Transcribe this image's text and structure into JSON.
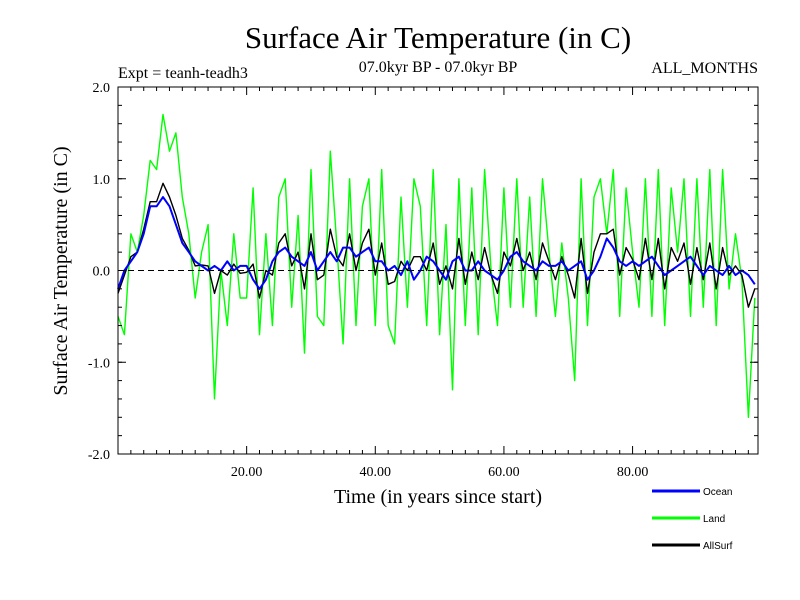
{
  "chart_data": {
    "type": "line",
    "title": "Surface Air Temperature (in C)",
    "subtitle_left": "Expt = teanh-teadh3",
    "subtitle_center": "07.0kyr BP - 07.0kyr BP",
    "subtitle_right": "ALL_MONTHS",
    "xlabel": "Time (in years since start)",
    "ylabel": "Surface Air Temperature (in C)",
    "xlim": [
      0,
      99.5
    ],
    "ylim": [
      -2.0,
      2.0
    ],
    "xticks": [
      20,
      40,
      60,
      80
    ],
    "xtick_labels": [
      "20.00",
      "40.00",
      "60.00",
      "80.00"
    ],
    "yticks": [
      -2.0,
      -1.0,
      0.0,
      1.0,
      2.0
    ],
    "ytick_labels": [
      "-2.0",
      "-1.0",
      "0.0",
      "1.0",
      "2.0"
    ],
    "reference_line_y": 0.0,
    "series": [
      {
        "name": "Ocean",
        "color": "#0000ff",
        "x": [
          0,
          1,
          2,
          3,
          4,
          5,
          6,
          7,
          8,
          9,
          10,
          11,
          12,
          13,
          14,
          15,
          16,
          17,
          18,
          19,
          20,
          21,
          22,
          23,
          24,
          25,
          26,
          27,
          28,
          29,
          30,
          31,
          32,
          33,
          34,
          35,
          36,
          37,
          38,
          39,
          40,
          41,
          42,
          43,
          44,
          45,
          46,
          47,
          48,
          49,
          50,
          51,
          52,
          53,
          54,
          55,
          56,
          57,
          58,
          59,
          60,
          61,
          62,
          63,
          64,
          65,
          66,
          67,
          68,
          69,
          70,
          71,
          72,
          73,
          74,
          75,
          76,
          77,
          78,
          79,
          80,
          81,
          82,
          83,
          84,
          85,
          86,
          87,
          88,
          89,
          90,
          91,
          92,
          93,
          94,
          95,
          96,
          97,
          98,
          99
        ],
        "values": [
          -0.2,
          0.0,
          0.1,
          0.2,
          0.4,
          0.7,
          0.7,
          0.8,
          0.7,
          0.5,
          0.3,
          0.2,
          0.1,
          0.05,
          0.0,
          0.05,
          0.0,
          0.1,
          0.0,
          0.05,
          0.05,
          -0.1,
          -0.2,
          -0.1,
          0.1,
          0.2,
          0.25,
          0.15,
          0.1,
          0.05,
          0.2,
          0.0,
          0.1,
          0.2,
          0.1,
          0.25,
          0.25,
          0.15,
          0.2,
          0.25,
          0.1,
          0.1,
          0.0,
          0.05,
          -0.05,
          0.1,
          -0.1,
          0.0,
          0.15,
          0.1,
          0.0,
          -0.1,
          0.1,
          0.15,
          0.0,
          0.0,
          0.1,
          0.0,
          -0.05,
          -0.1,
          0.0,
          0.15,
          0.2,
          0.1,
          0.05,
          0.0,
          0.1,
          0.05,
          0.05,
          0.1,
          0.0,
          0.05,
          0.1,
          -0.1,
          0.0,
          0.15,
          0.35,
          0.25,
          0.1,
          0.05,
          0.1,
          0.05,
          0.1,
          0.15,
          0.05,
          -0.05,
          0.0,
          0.05,
          0.1,
          0.15,
          0.05,
          -0.05,
          0.05,
          0.0,
          -0.05,
          0.05,
          -0.05,
          0.0,
          -0.05,
          -0.15
        ]
      },
      {
        "name": "Land",
        "color": "#00ff00",
        "x": [
          0,
          1,
          2,
          3,
          4,
          5,
          6,
          7,
          8,
          9,
          10,
          11,
          12,
          13,
          14,
          15,
          16,
          17,
          18,
          19,
          20,
          21,
          22,
          23,
          24,
          25,
          26,
          27,
          28,
          29,
          30,
          31,
          32,
          33,
          34,
          35,
          36,
          37,
          38,
          39,
          40,
          41,
          42,
          43,
          44,
          45,
          46,
          47,
          48,
          49,
          50,
          51,
          52,
          53,
          54,
          55,
          56,
          57,
          58,
          59,
          60,
          61,
          62,
          63,
          64,
          65,
          66,
          67,
          68,
          69,
          70,
          71,
          72,
          73,
          74,
          75,
          76,
          77,
          78,
          79,
          80,
          81,
          82,
          83,
          84,
          85,
          86,
          87,
          88,
          89,
          90,
          91,
          92,
          93,
          94,
          95,
          96,
          97,
          98,
          99
        ],
        "values": [
          -0.5,
          -0.7,
          0.4,
          0.2,
          0.6,
          1.2,
          1.1,
          1.7,
          1.3,
          1.5,
          0.8,
          0.4,
          -0.3,
          0.2,
          0.5,
          -1.4,
          0.0,
          -0.6,
          0.4,
          -0.3,
          -0.3,
          0.9,
          -0.7,
          0.4,
          -0.6,
          0.8,
          1.0,
          -0.4,
          0.6,
          -0.9,
          1.1,
          -0.5,
          -0.6,
          1.3,
          0.3,
          -0.8,
          1.0,
          -0.6,
          0.7,
          1.0,
          -0.6,
          1.1,
          -0.6,
          -0.8,
          0.8,
          -0.4,
          1.0,
          0.7,
          -0.6,
          1.1,
          -0.7,
          0.5,
          -1.3,
          1.0,
          -0.6,
          0.9,
          -0.7,
          1.1,
          0.0,
          -0.6,
          0.9,
          -0.4,
          1.0,
          -0.4,
          0.8,
          -0.5,
          1.0,
          0.2,
          -0.5,
          0.3,
          -0.3,
          -1.2,
          1.0,
          -0.6,
          0.8,
          1.0,
          0.4,
          1.1,
          -0.5,
          0.9,
          0.2,
          -0.4,
          1.0,
          -0.5,
          1.1,
          -0.6,
          0.9,
          0.2,
          1.0,
          -0.5,
          1.0,
          -0.4,
          1.1,
          -0.6,
          1.1,
          -0.2,
          0.4,
          -0.1,
          -1.6,
          -0.3
        ]
      },
      {
        "name": "AllSurf",
        "color": "#000000",
        "x": [
          0,
          1,
          2,
          3,
          4,
          5,
          6,
          7,
          8,
          9,
          10,
          11,
          12,
          13,
          14,
          15,
          16,
          17,
          18,
          19,
          20,
          21,
          22,
          23,
          24,
          25,
          26,
          27,
          28,
          29,
          30,
          31,
          32,
          33,
          34,
          35,
          36,
          37,
          38,
          39,
          40,
          41,
          42,
          43,
          44,
          45,
          46,
          47,
          48,
          49,
          50,
          51,
          52,
          53,
          54,
          55,
          56,
          57,
          58,
          59,
          60,
          61,
          62,
          63,
          64,
          65,
          66,
          67,
          68,
          69,
          70,
          71,
          72,
          73,
          74,
          75,
          76,
          77,
          78,
          79,
          80,
          81,
          82,
          83,
          84,
          85,
          86,
          87,
          88,
          89,
          90,
          91,
          92,
          93,
          94,
          95,
          96,
          97,
          98,
          99
        ],
        "values": [
          -0.25,
          -0.05,
          0.15,
          0.2,
          0.45,
          0.75,
          0.75,
          0.95,
          0.8,
          0.6,
          0.35,
          0.22,
          0.05,
          0.06,
          0.05,
          -0.25,
          0.0,
          -0.05,
          0.07,
          -0.03,
          -0.02,
          0.07,
          -0.3,
          0.0,
          -0.05,
          0.3,
          0.4,
          0.05,
          0.2,
          -0.2,
          0.4,
          -0.1,
          -0.05,
          0.45,
          0.15,
          0.05,
          0.4,
          0.0,
          0.3,
          0.45,
          -0.05,
          0.3,
          -0.15,
          -0.12,
          0.1,
          0.0,
          0.15,
          0.15,
          0.0,
          0.3,
          -0.15,
          0.05,
          -0.2,
          0.35,
          -0.15,
          0.2,
          -0.1,
          0.25,
          -0.05,
          -0.25,
          0.2,
          0.05,
          0.35,
          0.0,
          0.2,
          -0.1,
          0.3,
          0.1,
          -0.1,
          0.15,
          -0.05,
          -0.3,
          0.35,
          -0.25,
          0.2,
          0.4,
          0.4,
          0.45,
          -0.05,
          0.25,
          0.12,
          -0.1,
          0.35,
          -0.1,
          0.35,
          -0.2,
          0.25,
          0.1,
          0.3,
          -0.15,
          0.25,
          -0.1,
          0.3,
          -0.2,
          0.25,
          -0.05,
          0.05,
          -0.05,
          -0.4,
          -0.2
        ]
      }
    ],
    "legend": {
      "placement": "bottom-right",
      "entries": [
        {
          "label": "Ocean",
          "color": "#0000ff"
        },
        {
          "label": "Land",
          "color": "#00ff00"
        },
        {
          "label": "AllSurf",
          "color": "#000000"
        }
      ]
    }
  }
}
